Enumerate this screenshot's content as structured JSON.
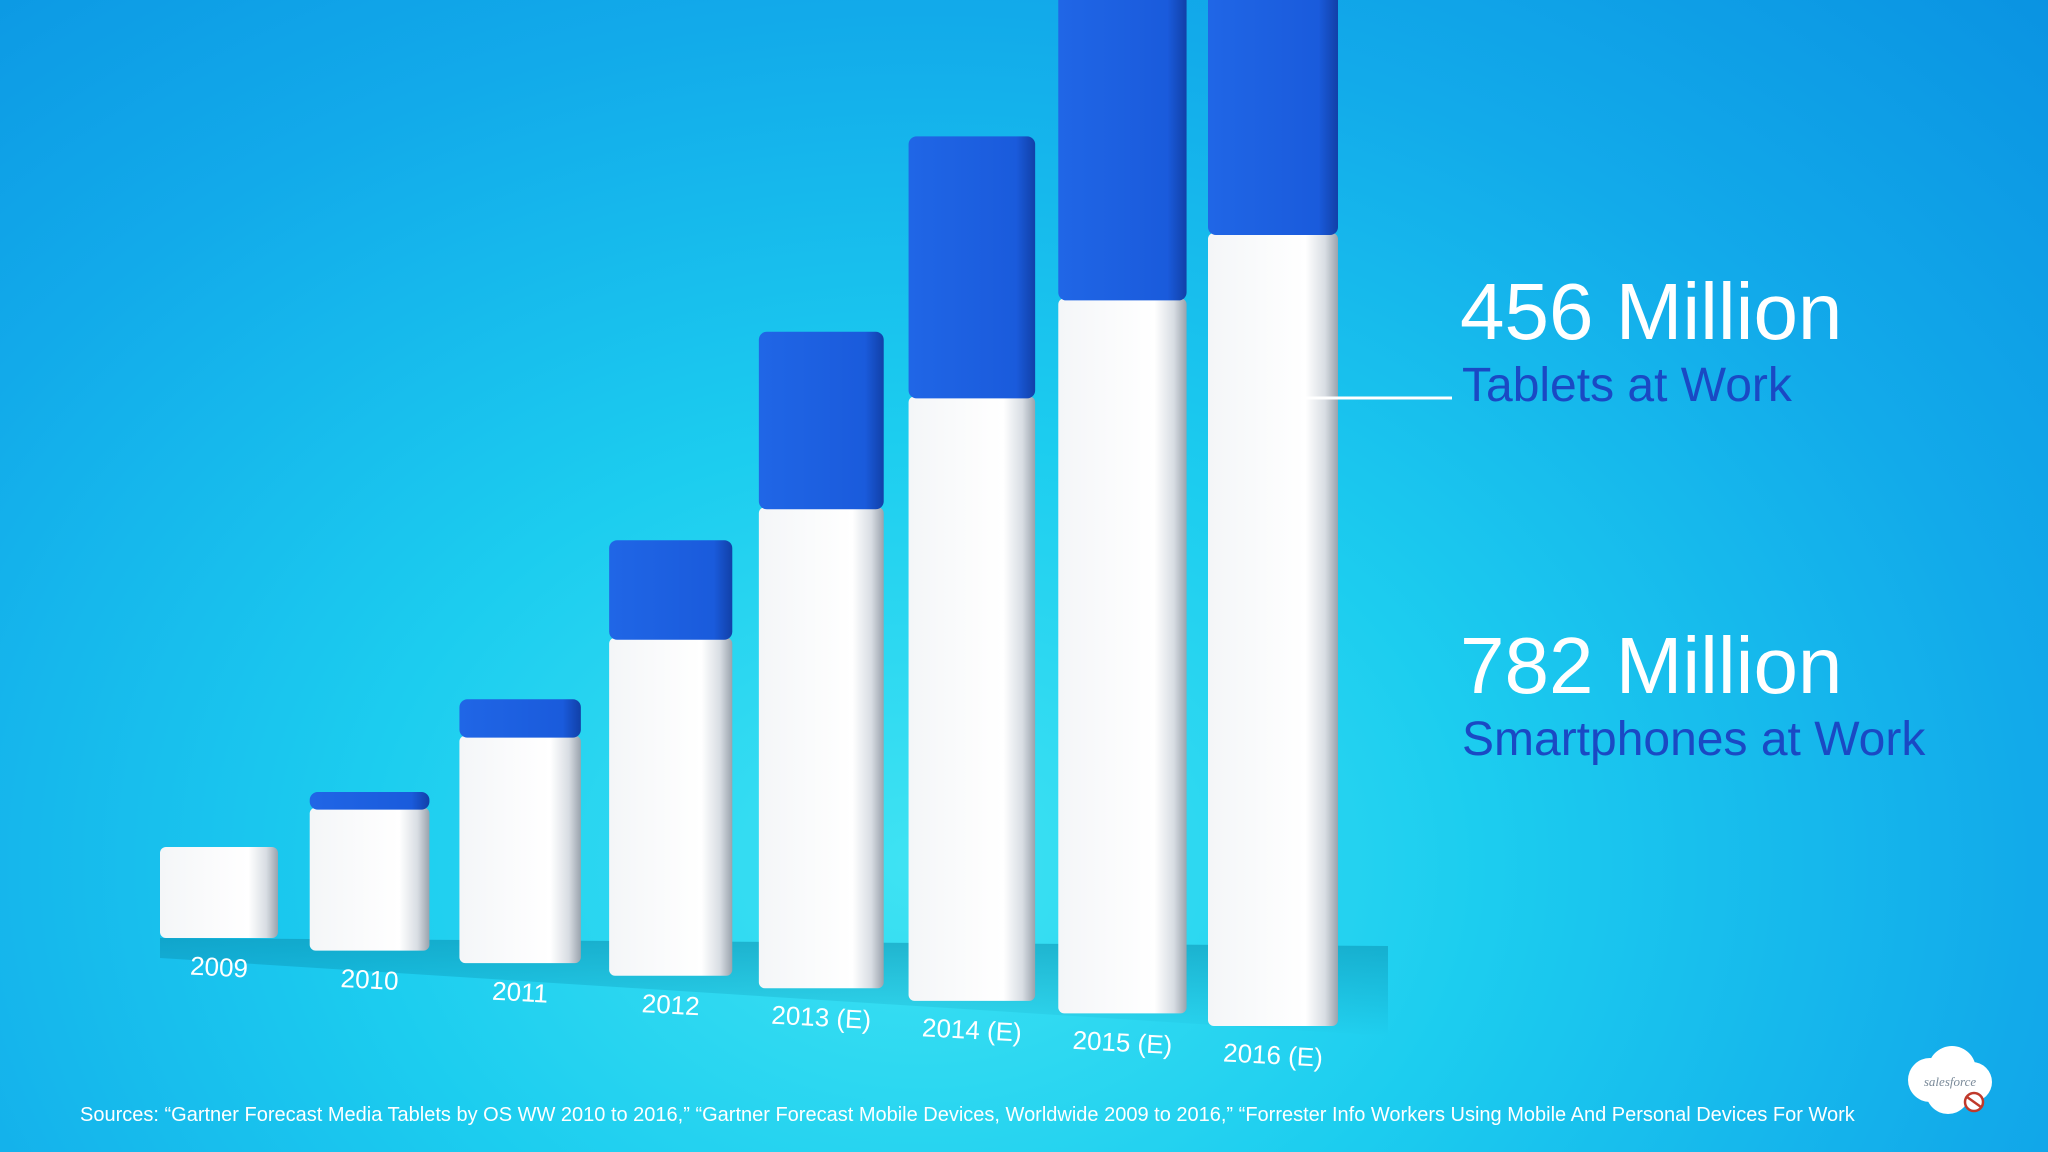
{
  "chart_data": {
    "type": "bar",
    "stacked": true,
    "categories": [
      "2009",
      "2010",
      "2011",
      "2012",
      "2013 (E)",
      "2014 (E)",
      "2015 (E)",
      "2016 (E)"
    ],
    "series": [
      {
        "name": "Smartphones at Work",
        "color": "#ffffff",
        "values": [
          70,
          110,
          175,
          260,
          370,
          465,
          550,
          610
        ]
      },
      {
        "name": "Tablets at Work",
        "color": "#1d5fdc",
        "values": [
          0,
          12,
          28,
          75,
          135,
          200,
          262,
          325
        ]
      }
    ],
    "grid": false,
    "legend": "none"
  },
  "callouts": {
    "tablets": {
      "value": "456 Million",
      "label": "Tablets at Work",
      "label_color": "#1a49c4"
    },
    "smartphones": {
      "value": "782 Million",
      "label": "Smartphones at Work",
      "label_color": "#1a49c4"
    }
  },
  "sources": "Sources: “Gartner Forecast Media Tablets by OS WW 2010 to 2016,” “Gartner Forecast Mobile Devices, Worldwide 2009 to 2016,” “Forrester Info Workers Using Mobile And Personal Devices For Work",
  "logo": {
    "text": "salesforce",
    "icon": "salesforce-cloud-logo"
  }
}
